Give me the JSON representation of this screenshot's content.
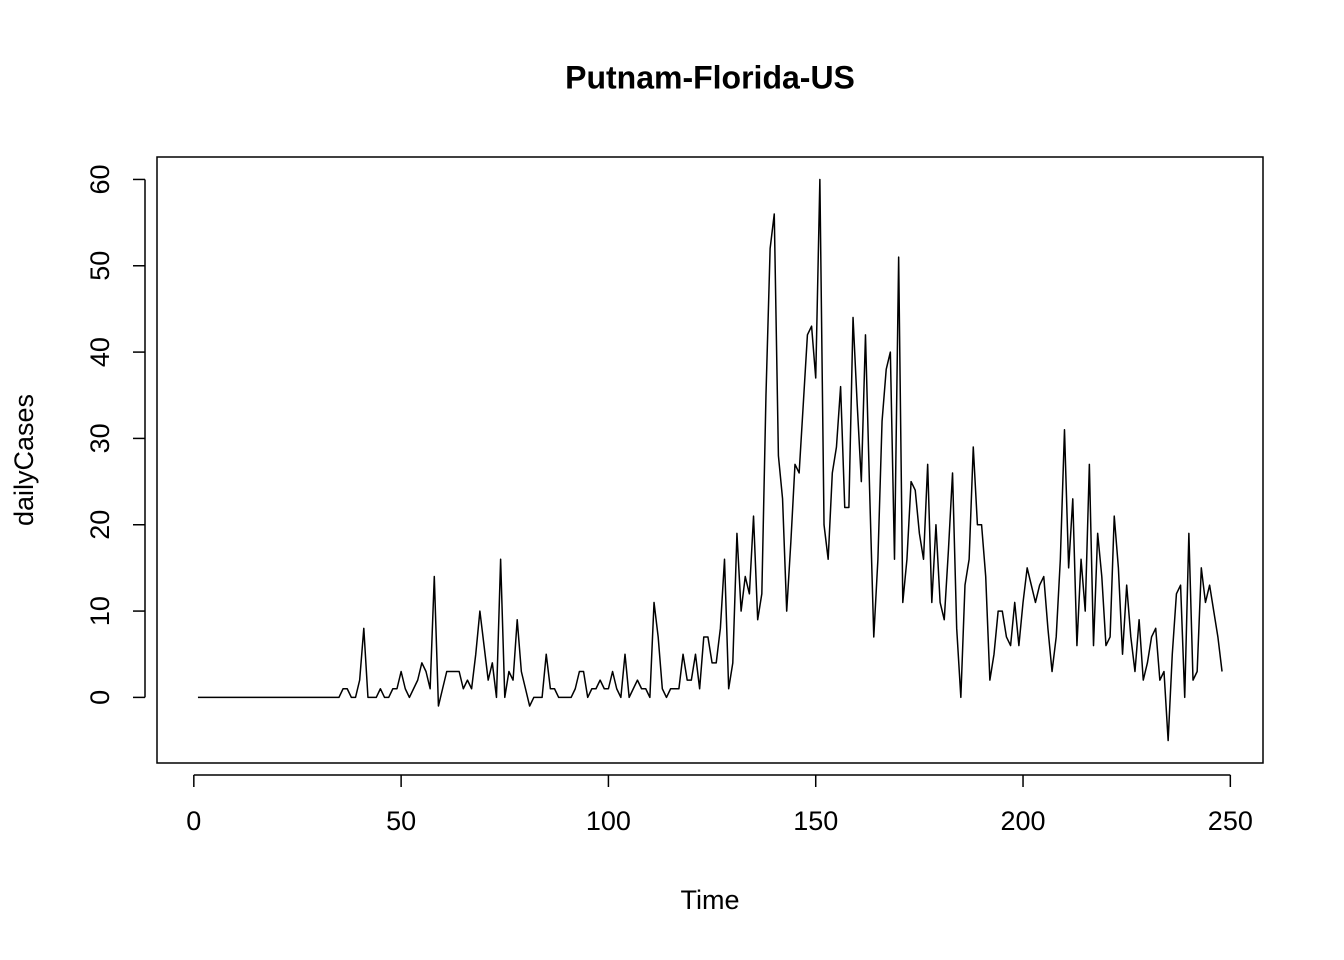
{
  "chart_data": {
    "type": "line",
    "title": "Putnam-Florida-US",
    "x_label": "Time",
    "y_label": "dailyCases",
    "color": "#000000",
    "x": [
      1,
      2,
      3,
      4,
      5,
      6,
      7,
      8,
      9,
      10,
      11,
      12,
      13,
      14,
      15,
      16,
      17,
      18,
      19,
      20,
      21,
      22,
      23,
      24,
      25,
      26,
      27,
      28,
      29,
      30,
      31,
      32,
      33,
      34,
      35,
      36,
      37,
      38,
      39,
      40,
      41,
      42,
      43,
      44,
      45,
      46,
      47,
      48,
      49,
      50,
      51,
      52,
      53,
      54,
      55,
      56,
      57,
      58,
      59,
      60,
      61,
      62,
      63,
      64,
      65,
      66,
      67,
      68,
      69,
      70,
      71,
      72,
      73,
      74,
      75,
      76,
      77,
      78,
      79,
      80,
      81,
      82,
      83,
      84,
      85,
      86,
      87,
      88,
      89,
      90,
      91,
      92,
      93,
      94,
      95,
      96,
      97,
      98,
      99,
      100,
      101,
      102,
      103,
      104,
      105,
      106,
      107,
      108,
      109,
      110,
      111,
      112,
      113,
      114,
      115,
      116,
      117,
      118,
      119,
      120,
      121,
      122,
      123,
      124,
      125,
      126,
      127,
      128,
      129,
      130,
      131,
      132,
      133,
      134,
      135,
      136,
      137,
      138,
      139,
      140,
      141,
      142,
      143,
      144,
      145,
      146,
      147,
      148,
      149,
      150,
      151,
      152,
      153,
      154,
      155,
      156,
      157,
      158,
      159,
      160,
      161,
      162,
      163,
      164,
      165,
      166,
      167,
      168,
      169,
      170,
      171,
      172,
      173,
      174,
      175,
      176,
      177,
      178,
      179,
      180,
      181,
      182,
      183,
      184,
      185,
      186,
      187,
      188,
      189,
      190,
      191,
      192,
      193,
      194,
      195,
      196,
      197,
      198,
      199,
      200,
      201,
      202,
      203,
      204,
      205,
      206,
      207,
      208,
      209,
      210,
      211,
      212,
      213,
      214,
      215,
      216,
      217,
      218,
      219,
      220,
      221,
      222,
      223,
      224,
      225,
      226,
      227,
      228,
      229,
      230,
      231,
      232,
      233,
      234,
      235,
      236,
      237,
      238,
      239,
      240,
      241,
      242,
      243,
      244,
      245,
      246,
      247,
      248
    ],
    "values": [
      0,
      0,
      0,
      0,
      0,
      0,
      0,
      0,
      0,
      0,
      0,
      0,
      0,
      0,
      0,
      0,
      0,
      0,
      0,
      0,
      0,
      0,
      0,
      0,
      0,
      0,
      0,
      0,
      0,
      0,
      0,
      0,
      0,
      0,
      0,
      1,
      1,
      0,
      0,
      2,
      8,
      0,
      0,
      0,
      1,
      0,
      0,
      1,
      1,
      3,
      1,
      0,
      1,
      2,
      4,
      3,
      1,
      14,
      -1,
      1,
      3,
      3,
      3,
      3,
      1,
      2,
      1,
      5,
      10,
      6,
      2,
      4,
      0,
      16,
      0,
      3,
      2,
      9,
      3,
      1,
      -1,
      0,
      0,
      0,
      5,
      1,
      1,
      0,
      0,
      0,
      0,
      1,
      3,
      3,
      0,
      1,
      1,
      2,
      1,
      1,
      3,
      1,
      0,
      5,
      0,
      1,
      2,
      1,
      1,
      0,
      11,
      7,
      1,
      0,
      1,
      1,
      1,
      5,
      2,
      2,
      5,
      1,
      7,
      7,
      4,
      4,
      8,
      16,
      1,
      4,
      19,
      10,
      14,
      12,
      21,
      9,
      12,
      35,
      52,
      56,
      28,
      23,
      10,
      18,
      27,
      26,
      34,
      42,
      43,
      37,
      60,
      20,
      16,
      26,
      29,
      36,
      22,
      22,
      44,
      34,
      25,
      42,
      24,
      7,
      16,
      32,
      38,
      40,
      16,
      51,
      11,
      16,
      25,
      24,
      19,
      16,
      27,
      11,
      20,
      11,
      9,
      17,
      26,
      8,
      0,
      13,
      16,
      29,
      20,
      20,
      14,
      2,
      5,
      10,
      10,
      7,
      6,
      11,
      6,
      11,
      15,
      13,
      11,
      13,
      14,
      8,
      3,
      7,
      16,
      31,
      15,
      23,
      6,
      16,
      10,
      27,
      6,
      19,
      14,
      6,
      7,
      21,
      15,
      5,
      13,
      7,
      3,
      9,
      2,
      4,
      7,
      8,
      2,
      3,
      -5,
      5,
      12,
      13,
      0,
      19,
      2,
      3,
      15,
      11,
      13,
      10,
      7,
      3
    ],
    "xlim": [
      -8.88,
      257.88
    ],
    "ylim": [
      -7.6,
      62.6
    ],
    "xticks": [
      0,
      50,
      100,
      150,
      200,
      250
    ],
    "yticks": [
      0,
      10,
      20,
      30,
      40,
      50,
      60
    ]
  }
}
